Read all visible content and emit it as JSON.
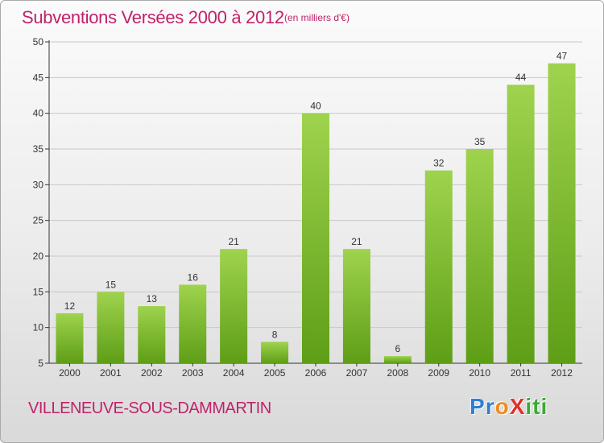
{
  "title": "Subventions Versées 2000 à 2012",
  "subtitle": "(en milliers d'€)",
  "commune": "VILLENEUVE-SOUS-DAMMARTIN",
  "logo": {
    "text": "ProXiti",
    "letters": [
      {
        "ch": "P",
        "color": "#2f7fd0"
      },
      {
        "ch": "r",
        "color": "#2f7fd0"
      },
      {
        "ch": "o",
        "color": "#f08a1c"
      },
      {
        "ch": "X",
        "color": "#e0302a"
      },
      {
        "ch": "i",
        "color": "#3aaa35"
      },
      {
        "ch": "t",
        "color": "#3aaa35"
      },
      {
        "ch": "i",
        "color": "#3aaa35"
      }
    ]
  },
  "colors": {
    "bar_light": "#9fd34e",
    "bar_dark": "#5e9e16",
    "accent": "#c0226a",
    "grid": "#c8c8c8",
    "axis": "#333333"
  },
  "chart_data": {
    "type": "bar",
    "title": "Subventions Versées 2000 à 2012",
    "subtitle": "(en milliers d'€)",
    "categories": [
      "2000",
      "2001",
      "2002",
      "2003",
      "2004",
      "2005",
      "2006",
      "2007",
      "2008",
      "2009",
      "2010",
      "2011",
      "2012"
    ],
    "values": [
      12,
      15,
      13,
      16,
      21,
      8,
      40,
      21,
      6,
      32,
      35,
      44,
      47
    ],
    "ylim": [
      5,
      50
    ],
    "yticks": [
      5,
      10,
      15,
      20,
      25,
      30,
      35,
      40,
      45,
      50
    ],
    "grid": true,
    "data_labels": true
  }
}
